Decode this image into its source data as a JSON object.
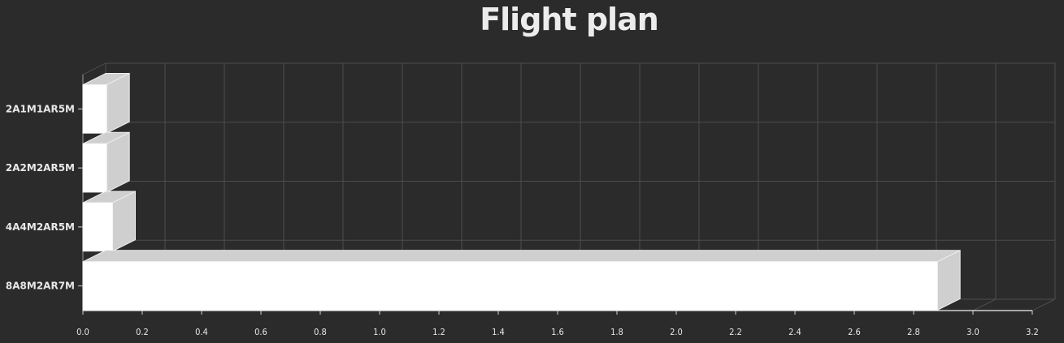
{
  "chart_data": {
    "type": "bar",
    "orientation": "horizontal",
    "title": "Flight plan",
    "xlabel": "",
    "ylabel": "",
    "categories": [
      "2A1M1AR5M",
      "2A2M2AR5M",
      "4A4M2AR5M",
      "8A8M2AR7M"
    ],
    "values": [
      0.08,
      0.08,
      0.1,
      2.88
    ],
    "xlim": [
      0,
      3.2
    ],
    "xticks": [
      "0.0",
      "0.2",
      "0.4",
      "0.6",
      "0.8",
      "1.0",
      "1.2",
      "1.4",
      "1.6",
      "1.8",
      "2.0",
      "2.2",
      "2.4",
      "2.6",
      "2.8",
      "3.0",
      "3.2"
    ],
    "grid": true,
    "legend": "none",
    "colors": {
      "background": "#2b2b2b",
      "bar_front": "#ffffff",
      "bar_side": "#cfcfcf",
      "grid": "#4d4d4d",
      "text": "#e8e8e8"
    }
  }
}
